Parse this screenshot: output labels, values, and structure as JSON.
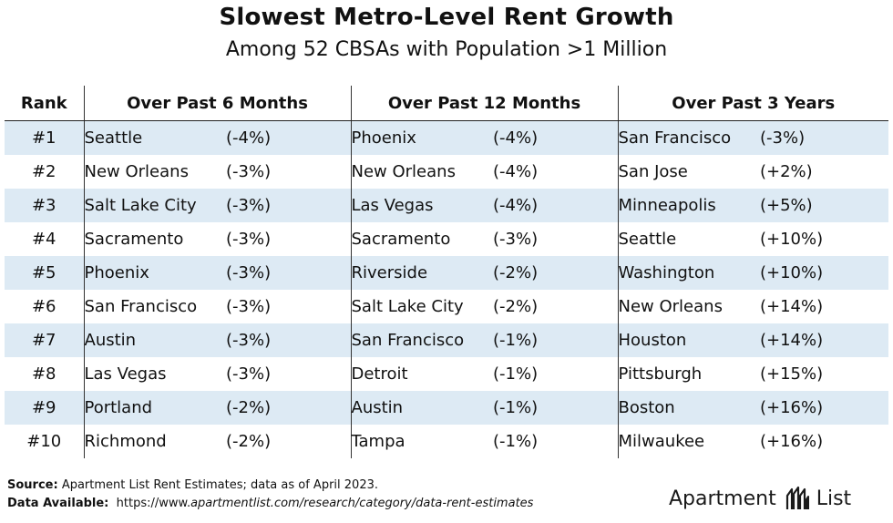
{
  "header": {
    "title": "Slowest Metro-Level Rent Growth",
    "subtitle": "Among 52 CBSAs with Population >1 Million"
  },
  "table": {
    "columns": {
      "rank": "Rank",
      "six_months": "Over Past 6 Months",
      "twelve_months": "Over Past 12 Months",
      "three_years": "Over Past 3 Years"
    },
    "rows": [
      {
        "rank": "#1",
        "m6_city": "Seattle",
        "m6_pct": "(-4%)",
        "m12_city": "Phoenix",
        "m12_pct": "(-4%)",
        "y3_city": "San Francisco",
        "y3_pct": "(-3%)"
      },
      {
        "rank": "#2",
        "m6_city": "New Orleans",
        "m6_pct": "(-3%)",
        "m12_city": "New Orleans",
        "m12_pct": "(-4%)",
        "y3_city": "San Jose",
        "y3_pct": "(+2%)"
      },
      {
        "rank": "#3",
        "m6_city": "Salt Lake City",
        "m6_pct": "(-3%)",
        "m12_city": "Las Vegas",
        "m12_pct": "(-4%)",
        "y3_city": "Minneapolis",
        "y3_pct": "(+5%)"
      },
      {
        "rank": "#4",
        "m6_city": "Sacramento",
        "m6_pct": "(-3%)",
        "m12_city": "Sacramento",
        "m12_pct": "(-3%)",
        "y3_city": "Seattle",
        "y3_pct": "(+10%)"
      },
      {
        "rank": "#5",
        "m6_city": "Phoenix",
        "m6_pct": "(-3%)",
        "m12_city": "Riverside",
        "m12_pct": "(-2%)",
        "y3_city": "Washington",
        "y3_pct": "(+10%)"
      },
      {
        "rank": "#6",
        "m6_city": "San Francisco",
        "m6_pct": "(-3%)",
        "m12_city": "Salt Lake City",
        "m12_pct": "(-2%)",
        "y3_city": "New Orleans",
        "y3_pct": "(+14%)"
      },
      {
        "rank": "#7",
        "m6_city": "Austin",
        "m6_pct": "(-3%)",
        "m12_city": "San Francisco",
        "m12_pct": "(-1%)",
        "y3_city": "Houston",
        "y3_pct": "(+14%)"
      },
      {
        "rank": "#8",
        "m6_city": "Las Vegas",
        "m6_pct": "(-3%)",
        "m12_city": "Detroit",
        "m12_pct": "(-1%)",
        "y3_city": "Pittsburgh",
        "y3_pct": "(+15%)"
      },
      {
        "rank": "#9",
        "m6_city": "Portland",
        "m6_pct": "(-2%)",
        "m12_city": "Austin",
        "m12_pct": "(-1%)",
        "y3_city": "Boston",
        "y3_pct": "(+16%)"
      },
      {
        "rank": "#10",
        "m6_city": "Richmond",
        "m6_pct": "(-2%)",
        "m12_city": "Tampa",
        "m12_pct": "(-1%)",
        "y3_city": "Milwaukee",
        "y3_pct": "(+16%)"
      }
    ]
  },
  "footer": {
    "source_label": "Source:",
    "source_text": " Apartment List Rent Estimates; data as of April 2023.",
    "data_label": "Data Available:",
    "data_url_prefix": "https://www.",
    "data_url_italic": "apartmentlist.com/research/category/data-rent-estimates"
  },
  "brand": {
    "left_word": "Apartment",
    "right_word": "List",
    "logo_icon": "apartment-list-logo-icon"
  },
  "colors": {
    "row_stripe": "#ddeaf4",
    "text": "#111111",
    "background": "#ffffff"
  }
}
